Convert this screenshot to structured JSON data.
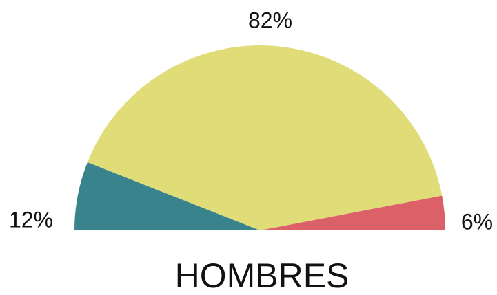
{
  "chart_data": {
    "type": "pie",
    "title": "HOMBRES",
    "categories": [
      null,
      null,
      null
    ],
    "values": [
      12,
      82,
      6
    ],
    "value_labels": [
      "12%",
      "82%",
      "6%"
    ],
    "colors": [
      "#38838c",
      "#e0dc78",
      "#dc6068"
    ]
  }
}
